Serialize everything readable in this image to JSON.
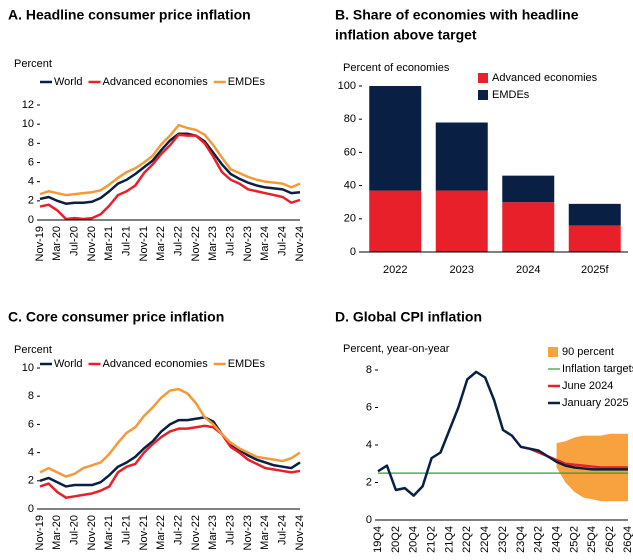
{
  "chart_data": [
    {
      "type": "line",
      "title": [
        "A. Headline consumer price inflation"
      ],
      "y_label": "Percent",
      "categories": [
        "Nov-19",
        null,
        "Mar-20",
        null,
        "Jul-20",
        null,
        "Nov-20",
        null,
        "Mar-21",
        null,
        "Jul-21",
        null,
        "Nov-21",
        null,
        "Mar-22",
        null,
        "Jul-22",
        null,
        "Nov-22",
        null,
        "Mar-23",
        null,
        "Jul-23",
        null,
        "Nov-23",
        null,
        "Mar-24",
        null,
        "Jul-24",
        null,
        "Nov-24"
      ],
      "series": [
        {
          "name": "World",
          "color": "#0a1f44",
          "values": [
            2.2,
            2.4,
            2.0,
            1.7,
            1.8,
            1.8,
            1.9,
            2.3,
            3.0,
            3.8,
            4.2,
            4.8,
            5.5,
            6.2,
            7.3,
            8.3,
            9.0,
            9.0,
            8.8,
            8.2,
            7.0,
            5.8,
            4.8,
            4.3,
            3.9,
            3.6,
            3.4,
            3.3,
            3.2,
            2.8,
            2.9
          ]
        },
        {
          "name": "Advanced economies",
          "color": "#e8202a",
          "values": [
            1.4,
            1.6,
            1.0,
            0.1,
            0.2,
            0.1,
            0.2,
            0.6,
            1.5,
            2.6,
            3.0,
            3.6,
            4.9,
            5.8,
            6.9,
            7.8,
            8.9,
            8.8,
            8.8,
            8.0,
            6.6,
            5.0,
            4.2,
            3.8,
            3.2,
            3.0,
            2.8,
            2.6,
            2.4,
            1.8,
            2.1
          ]
        },
        {
          "name": "EMDEs",
          "color": "#f39a38",
          "values": [
            2.7,
            3.0,
            2.8,
            2.6,
            2.7,
            2.8,
            2.9,
            3.1,
            3.7,
            4.4,
            5.0,
            5.4,
            6.0,
            6.7,
            7.9,
            8.8,
            9.9,
            9.6,
            9.4,
            8.9,
            7.8,
            6.5,
            5.3,
            4.9,
            4.5,
            4.2,
            4.0,
            3.9,
            3.8,
            3.4,
            3.8
          ]
        }
      ],
      "ylim": [
        0,
        12
      ],
      "yticks": [
        0,
        2,
        4,
        6,
        8,
        10,
        12
      ]
    },
    {
      "type": "bar",
      "stacked": true,
      "title": [
        "B. Share of economies with headline",
        "inflation above target"
      ],
      "y_label": "Percent of economies",
      "categories": [
        "2022",
        "2023",
        "2024",
        "2025f"
      ],
      "series": [
        {
          "name": "Advanced economies",
          "color": "#e8202a",
          "values": [
            37,
            37,
            30,
            16
          ]
        },
        {
          "name": "EMDEs",
          "color": "#0a1f44",
          "values": [
            63,
            41,
            16,
            13
          ]
        }
      ],
      "ylim": [
        0,
        100
      ],
      "yticks": [
        0,
        20,
        40,
        60,
        80,
        100
      ]
    },
    {
      "type": "line",
      "title": [
        "C. Core consumer price inflation"
      ],
      "y_label": "Percent",
      "categories": [
        "Nov-19",
        null,
        "Mar-20",
        null,
        "Jul-20",
        null,
        "Nov-20",
        null,
        "Mar-21",
        null,
        "Jul-21",
        null,
        "Nov-21",
        null,
        "Mar-22",
        null,
        "Jul-22",
        null,
        "Nov-22",
        null,
        "Mar-23",
        null,
        "Jul-23",
        null,
        "Nov-23",
        null,
        "Mar-24",
        null,
        "Jul-24",
        null,
        "Nov-24"
      ],
      "series": [
        {
          "name": "World",
          "color": "#0a1f44",
          "values": [
            2.0,
            2.2,
            1.9,
            1.6,
            1.7,
            1.7,
            1.7,
            1.9,
            2.4,
            3.0,
            3.3,
            3.7,
            4.3,
            4.8,
            5.5,
            6.0,
            6.3,
            6.3,
            6.4,
            6.5,
            6.2,
            5.3,
            4.6,
            4.2,
            3.8,
            3.5,
            3.3,
            3.1,
            3.0,
            2.9,
            3.3
          ]
        },
        {
          "name": "Advanced economies",
          "color": "#e8202a",
          "values": [
            1.6,
            1.8,
            1.2,
            0.8,
            0.9,
            1.0,
            1.1,
            1.3,
            1.6,
            2.6,
            3.0,
            3.2,
            4.0,
            4.6,
            5.1,
            5.5,
            5.7,
            5.7,
            5.8,
            5.9,
            5.8,
            5.3,
            4.4,
            4.0,
            3.5,
            3.2,
            2.9,
            2.8,
            2.7,
            2.6,
            2.7
          ]
        },
        {
          "name": "EMDEs",
          "color": "#f39a38",
          "values": [
            2.6,
            2.9,
            2.6,
            2.3,
            2.5,
            2.9,
            3.1,
            3.3,
            3.9,
            4.7,
            5.4,
            5.8,
            6.6,
            7.2,
            7.9,
            8.4,
            8.5,
            8.2,
            7.5,
            6.5,
            6.0,
            5.3,
            4.7,
            4.3,
            4.0,
            3.7,
            3.6,
            3.5,
            3.4,
            3.6,
            4.0
          ]
        }
      ],
      "ylim": [
        0,
        10
      ],
      "yticks": [
        0,
        2,
        4,
        6,
        8,
        10
      ]
    },
    {
      "type": "line",
      "title": [
        "D. Global CPI inflation"
      ],
      "y_label": "Percent, year-on-year",
      "categories": [
        "19Q4",
        null,
        "20Q2",
        null,
        "20Q4",
        null,
        "21Q2",
        null,
        "21Q4",
        null,
        "22Q2",
        null,
        "22Q4",
        null,
        "23Q2",
        null,
        "23Q4",
        null,
        "24Q2",
        null,
        "24Q4",
        null,
        "25Q2",
        null,
        "25Q4",
        null,
        "26Q2",
        null,
        "26Q4"
      ],
      "series": [
        {
          "name": "90 percent",
          "kind": "band",
          "color": "#f7a23e",
          "lower": [
            null,
            null,
            null,
            null,
            null,
            null,
            null,
            null,
            null,
            null,
            null,
            null,
            null,
            null,
            null,
            null,
            null,
            null,
            null,
            null,
            2.8,
            2.0,
            1.5,
            1.2,
            1.1,
            1.0,
            1.0,
            1.0,
            1.0
          ],
          "upper": [
            null,
            null,
            null,
            null,
            null,
            null,
            null,
            null,
            null,
            null,
            null,
            null,
            null,
            null,
            null,
            null,
            null,
            null,
            null,
            null,
            4.1,
            4.2,
            4.4,
            4.5,
            4.5,
            4.5,
            4.6,
            4.6,
            4.6
          ]
        },
        {
          "name": "Inflation targets",
          "kind": "hline",
          "color": "#2ca02c",
          "value": 2.5
        },
        {
          "name": "June 2024",
          "color": "#e8202a",
          "values": [
            null,
            null,
            null,
            null,
            null,
            null,
            null,
            null,
            null,
            null,
            null,
            null,
            null,
            null,
            null,
            null,
            null,
            3.8,
            3.6,
            3.4,
            3.2,
            3.0,
            2.95,
            2.9,
            2.85,
            2.8,
            2.8,
            2.8,
            2.8
          ]
        },
        {
          "name": "January 2025",
          "color": "#0a1f44",
          "values": [
            2.6,
            2.9,
            1.6,
            1.7,
            1.3,
            1.8,
            3.3,
            3.6,
            4.8,
            6.0,
            7.5,
            7.9,
            7.6,
            6.4,
            4.8,
            4.5,
            3.9,
            3.8,
            3.7,
            3.4,
            3.1,
            2.9,
            2.8,
            2.75,
            2.7,
            2.7,
            2.7,
            2.7,
            2.7
          ]
        }
      ],
      "ylim": [
        0,
        8
      ],
      "yticks": [
        0,
        2,
        4,
        6,
        8
      ]
    }
  ]
}
